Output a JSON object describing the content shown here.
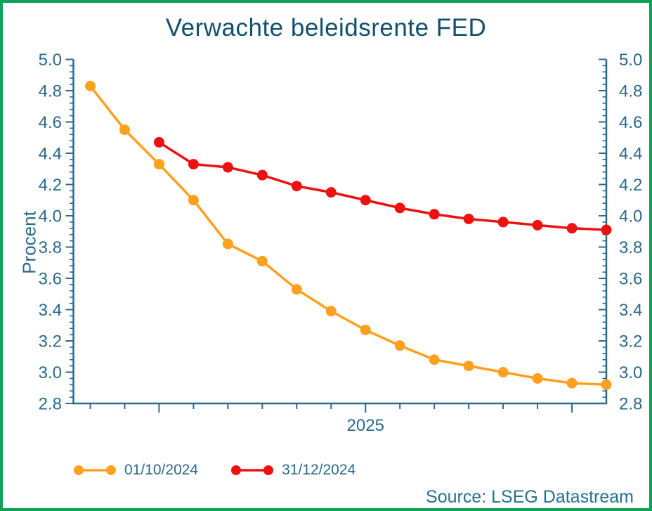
{
  "source": {
    "text": "Source: LSEG Datastream"
  },
  "theme": {
    "border_green": "#0BA159",
    "title_color": "#12506E",
    "axis_color": "#2A6A8C",
    "source_color": "#27718F",
    "orange": "#FFA01E",
    "red": "#EE1111"
  },
  "chart_data": {
    "type": "line",
    "title": "Verwachte beleidsrente FED",
    "xlabel": "2025",
    "ylabel": "Procent",
    "ylim": [
      2.8,
      5.0
    ],
    "ytick_step": 0.2,
    "yminor_per_major": 5,
    "ytick_labels": [
      "5.0",
      "4.8",
      "4.6",
      "4.4",
      "4.2",
      "4.0",
      "3.8",
      "3.6",
      "3.4",
      "3.2",
      "3.0",
      "2.8"
    ],
    "x_points": 16,
    "xtick_indices": [
      0,
      1,
      2,
      3,
      4,
      5,
      6,
      7,
      8,
      9,
      10,
      11,
      12,
      13,
      14
    ],
    "xtick_long_indices": [
      2,
      8,
      14
    ],
    "xlabel_index": 8,
    "legend_position": "bottom-left",
    "grid": false,
    "series": [
      {
        "name": "01/10/2024",
        "color": "#FFA01E",
        "start_index": 0,
        "values": [
          4.83,
          4.55,
          4.33,
          4.1,
          3.82,
          3.71,
          3.53,
          3.39,
          3.27,
          3.17,
          3.08,
          3.04,
          3.0,
          2.96,
          2.93,
          2.92
        ]
      },
      {
        "name": "31/12/2024",
        "color": "#EE1111",
        "start_index": 2,
        "values": [
          4.47,
          4.33,
          4.31,
          4.26,
          4.19,
          4.15,
          4.1,
          4.05,
          4.01,
          3.98,
          3.96,
          3.94,
          3.92,
          3.91
        ]
      }
    ]
  }
}
